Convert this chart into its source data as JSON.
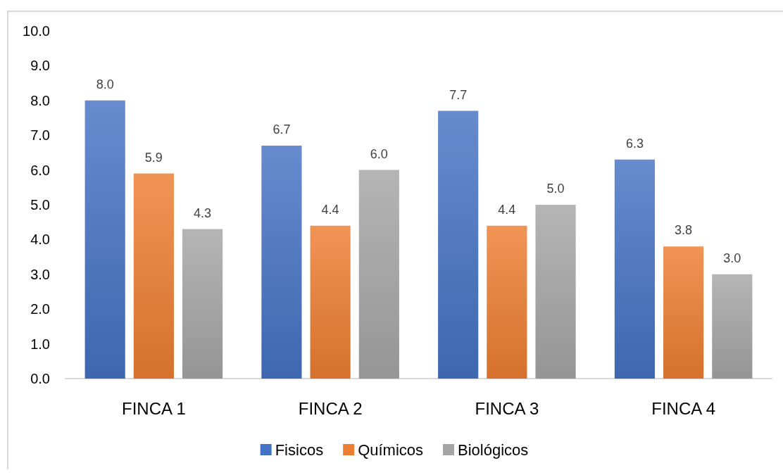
{
  "chart_data": {
    "type": "bar",
    "categories": [
      "FINCA 1",
      "FINCA 2",
      "FINCA 3",
      "FINCA 4"
    ],
    "series": [
      {
        "name": "Fisicos",
        "color": "#4472c4",
        "values": [
          8.0,
          6.7,
          7.7,
          6.3
        ],
        "value_labels": [
          "8.0",
          "6.7",
          "7.7",
          "6.3"
        ]
      },
      {
        "name": "Químicos",
        "color": "#ed7d31",
        "values": [
          5.9,
          4.4,
          4.4,
          3.8
        ],
        "value_labels": [
          "5.9",
          "4.4",
          "4.4",
          "3.8"
        ]
      },
      {
        "name": "Biológicos",
        "color": "#a5a5a5",
        "values": [
          4.3,
          6.0,
          5.0,
          3.0
        ],
        "value_labels": [
          "4.3",
          "6.0",
          "5.0",
          "3.0"
        ]
      }
    ],
    "ylim": [
      0,
      10
    ],
    "yticks": [
      {
        "value": 0,
        "label": "0.0"
      },
      {
        "value": 1,
        "label": "1.0"
      },
      {
        "value": 2,
        "label": "2.0"
      },
      {
        "value": 3,
        "label": "3.0"
      },
      {
        "value": 4,
        "label": "4.0"
      },
      {
        "value": 5,
        "label": "5.0"
      },
      {
        "value": 6,
        "label": "6.0"
      },
      {
        "value": 7,
        "label": "7.0"
      },
      {
        "value": 8,
        "label": "8.0"
      },
      {
        "value": 9,
        "label": "9.0"
      },
      {
        "value": 10,
        "label": "10.0"
      }
    ],
    "grid": false,
    "legend": "bottom"
  }
}
